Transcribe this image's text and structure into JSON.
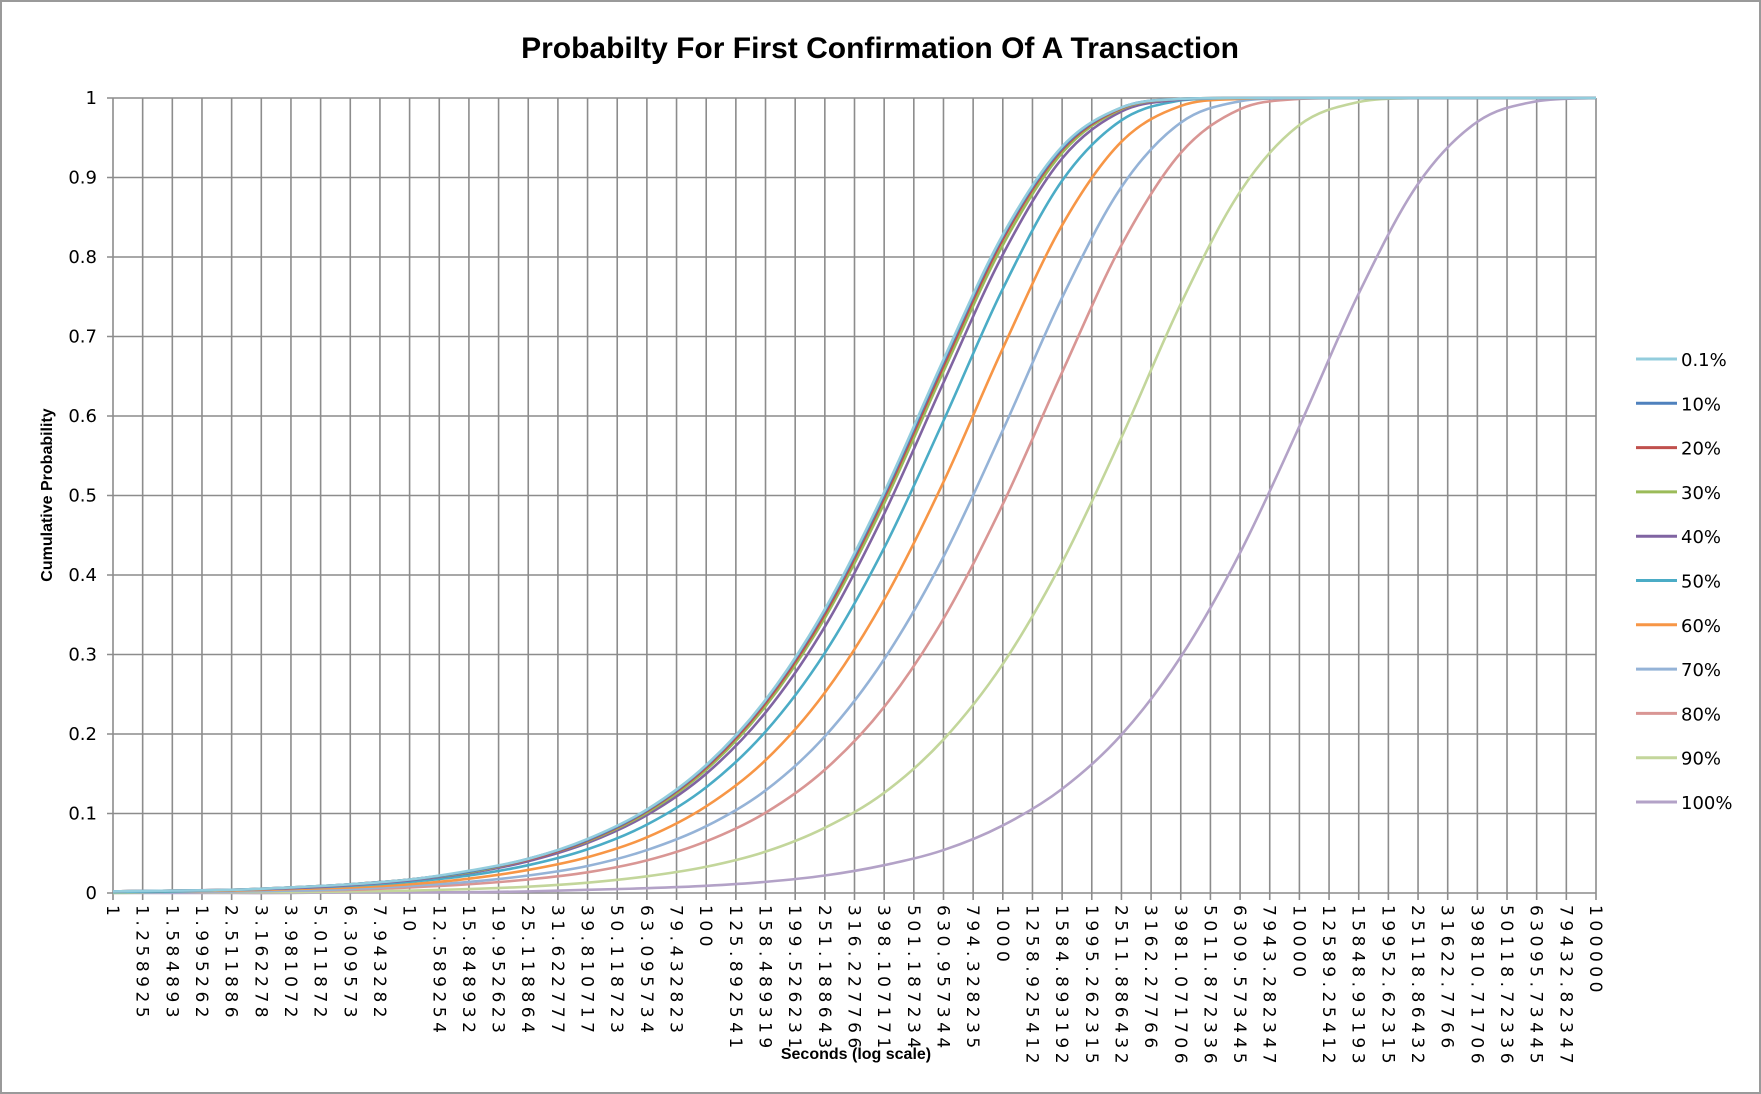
{
  "chart_data": {
    "type": "line",
    "title": "Probabilty For First Confirmation Of A Transaction",
    "xlabel": "Seconds (log scale)",
    "ylabel": "Cumulative Probability",
    "x_scale": "log",
    "xlim": [
      1,
      100000
    ],
    "ylim": [
      0,
      1
    ],
    "grid": true,
    "legend_position": "right",
    "y_ticks": [
      "0",
      "0.1",
      "0.2",
      "0.3",
      "0.4",
      "0.5",
      "0.6",
      "0.7",
      "0.8",
      "0.9",
      "1"
    ],
    "x_ticks": [
      "1",
      "1.258925",
      "1.584893",
      "1.995262",
      "2.511886",
      "3.162278",
      "3.981072",
      "5.011872",
      "6.309573",
      "7.943282",
      "10",
      "12.589254",
      "15.848932",
      "19.952623",
      "25.118864",
      "31.622777",
      "39.810717",
      "50.118723",
      "63.095734",
      "79.432823",
      "100",
      "125.892541",
      "158.489319",
      "199.526231",
      "251.188643",
      "316.227766",
      "398.107171",
      "501.187234",
      "630.957344",
      "794.328235",
      "1000",
      "1258.925412",
      "1584.893192",
      "1995.262315",
      "2511.886432",
      "3162.27766",
      "3981.071706",
      "5011.872336",
      "6309.573445",
      "7943.282347",
      "10000",
      "12589.25412",
      "15848.93193",
      "19952.62315",
      "25118.86432",
      "31622.7766",
      "39810.71706",
      "50118.72336",
      "63095.73445",
      "79432.82347",
      "100000"
    ],
    "x": [
      1,
      1.585,
      2.512,
      3.981,
      6.31,
      10,
      15.85,
      25.12,
      39.81,
      63.1,
      100,
      158.5,
      251.2,
      398.1,
      631,
      1000,
      1585,
      2512,
      3981,
      6310,
      10000,
      15849,
      25119,
      39811,
      63096,
      100000
    ],
    "series": [
      {
        "name": "0.1%",
        "color": "#93CDDD",
        "values": [
          0.002,
          0.003,
          0.004,
          0.007,
          0.011,
          0.017,
          0.028,
          0.043,
          0.068,
          0.105,
          0.161,
          0.243,
          0.357,
          0.504,
          0.671,
          0.828,
          0.939,
          0.988,
          0.999,
          1,
          1,
          1,
          1,
          1,
          1,
          1
        ]
      },
      {
        "name": "10%",
        "color": "#4F81BD",
        "values": [
          0.002,
          0.003,
          0.004,
          0.007,
          0.011,
          0.017,
          0.027,
          0.043,
          0.067,
          0.104,
          0.16,
          0.242,
          0.355,
          0.501,
          0.668,
          0.826,
          0.937,
          0.988,
          0.999,
          1,
          1,
          1,
          1,
          1,
          1,
          1
        ]
      },
      {
        "name": "20%",
        "color": "#C0504D",
        "values": [
          0.002,
          0.003,
          0.004,
          0.007,
          0.011,
          0.017,
          0.027,
          0.042,
          0.066,
          0.103,
          0.158,
          0.239,
          0.351,
          0.497,
          0.663,
          0.822,
          0.935,
          0.987,
          0.999,
          1,
          1,
          1,
          1,
          1,
          1,
          1
        ]
      },
      {
        "name": "30%",
        "color": "#9BBB59",
        "values": [
          0.002,
          0.003,
          0.004,
          0.007,
          0.011,
          0.017,
          0.026,
          0.042,
          0.065,
          0.101,
          0.155,
          0.235,
          0.346,
          0.49,
          0.656,
          0.815,
          0.931,
          0.986,
          0.999,
          1,
          1,
          1,
          1,
          1,
          1,
          1
        ]
      },
      {
        "name": "40%",
        "color": "#8064A2",
        "values": [
          0.002,
          0.003,
          0.004,
          0.006,
          0.01,
          0.016,
          0.025,
          0.04,
          0.063,
          0.098,
          0.15,
          0.227,
          0.335,
          0.477,
          0.642,
          0.803,
          0.924,
          0.983,
          0.998,
          1,
          1,
          1,
          1,
          1,
          1,
          1
        ]
      },
      {
        "name": "50%",
        "color": "#4BACC6",
        "values": [
          0.001,
          0.002,
          0.004,
          0.006,
          0.009,
          0.014,
          0.022,
          0.035,
          0.055,
          0.086,
          0.133,
          0.203,
          0.302,
          0.434,
          0.594,
          0.76,
          0.896,
          0.972,
          0.997,
          1,
          1,
          1,
          1,
          1,
          1,
          1
        ]
      },
      {
        "name": "60%",
        "color": "#F79646",
        "values": [
          0.001,
          0.002,
          0.003,
          0.005,
          0.007,
          0.011,
          0.018,
          0.029,
          0.045,
          0.07,
          0.109,
          0.167,
          0.252,
          0.369,
          0.517,
          0.685,
          0.84,
          0.945,
          0.99,
          0.999,
          1,
          1,
          1,
          1,
          1,
          1
        ]
      },
      {
        "name": "70%",
        "color": "#95B3D7",
        "values": [
          0.001,
          0.001,
          0.002,
          0.003,
          0.005,
          0.009,
          0.014,
          0.022,
          0.034,
          0.054,
          0.084,
          0.129,
          0.197,
          0.294,
          0.423,
          0.582,
          0.749,
          0.888,
          0.969,
          0.996,
          1,
          1,
          1,
          1,
          1,
          1
        ]
      },
      {
        "name": "80%",
        "color": "#D99694",
        "values": [
          0.001,
          0.001,
          0.002,
          0.003,
          0.004,
          0.007,
          0.011,
          0.017,
          0.026,
          0.041,
          0.065,
          0.101,
          0.155,
          0.234,
          0.345,
          0.489,
          0.655,
          0.815,
          0.931,
          0.986,
          0.999,
          1,
          1,
          1,
          1,
          1
        ]
      },
      {
        "name": "90%",
        "color": "#C3D69B",
        "values": [
          0,
          0.001,
          0.001,
          0.001,
          0.002,
          0.003,
          0.005,
          0.008,
          0.013,
          0.021,
          0.033,
          0.052,
          0.082,
          0.126,
          0.193,
          0.288,
          0.416,
          0.573,
          0.741,
          0.882,
          0.966,
          0.995,
          1,
          1,
          1,
          1
        ]
      },
      {
        "name": "100%",
        "color": "#B3A2C7",
        "values": [
          0,
          0,
          0,
          0,
          0.001,
          0.001,
          0.001,
          0.002,
          0.004,
          0.006,
          0.009,
          0.014,
          0.022,
          0.035,
          0.054,
          0.085,
          0.131,
          0.199,
          0.297,
          0.428,
          0.587,
          0.754,
          0.892,
          0.97,
          0.996,
          1
        ]
      }
    ]
  }
}
